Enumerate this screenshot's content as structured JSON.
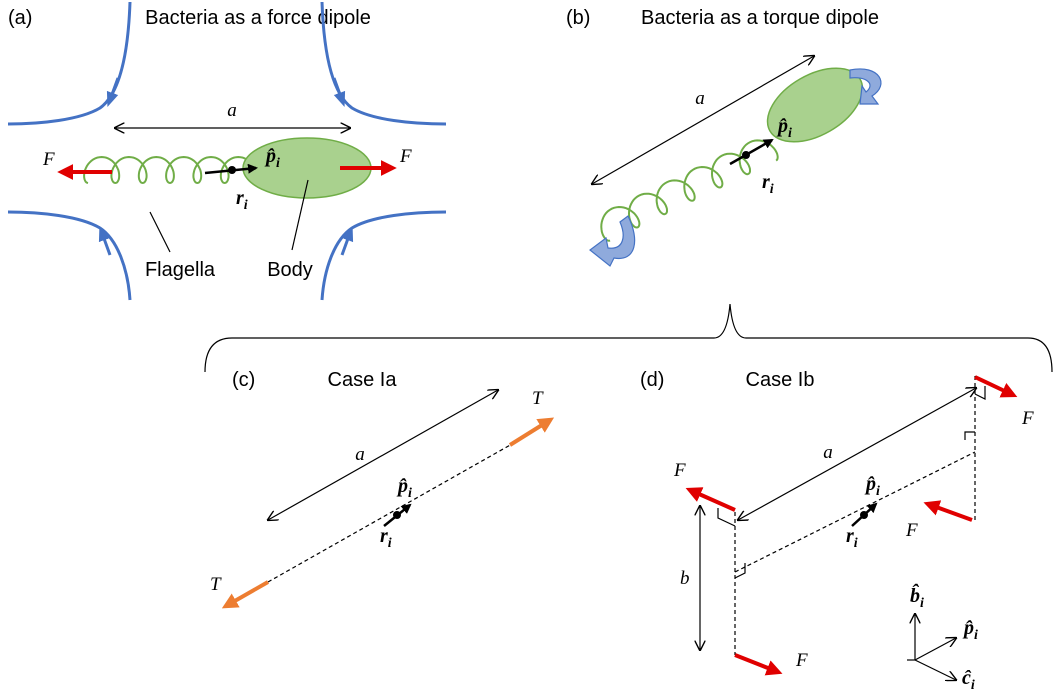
{
  "panels": [
    {
      "label": "(a)",
      "title": "Bacteria as a force dipole",
      "force_left": "F",
      "force_right": "F",
      "length": "a",
      "orientation": {
        "symbol": "p̂",
        "sub": "i"
      },
      "position": {
        "symbol": "r",
        "sub": "i"
      },
      "flagella": "Flagella",
      "body": "Body"
    },
    {
      "label": "(b)",
      "title": "Bacteria as a torque dipole",
      "length": "a",
      "orientation": {
        "symbol": "p̂",
        "sub": "i"
      },
      "position": {
        "symbol": "r",
        "sub": "i"
      }
    },
    {
      "label": "(c)",
      "title": "Case Ia",
      "torque_top": "T",
      "torque_bottom": "T",
      "length": "a",
      "orientation": {
        "symbol": "p̂",
        "sub": "i"
      },
      "position": {
        "symbol": "r",
        "sub": "i"
      }
    },
    {
      "label": "(d)",
      "title": "Case Ib",
      "forces": [
        "F",
        "F",
        "F",
        "F"
      ],
      "length": "a",
      "offset": "b",
      "orientation": {
        "symbol": "p̂",
        "sub": "i"
      },
      "position": {
        "symbol": "r",
        "sub": "i"
      },
      "axes": [
        {
          "symbol": "b̂",
          "sub": "i"
        },
        {
          "symbol": "p̂",
          "sub": "i"
        },
        {
          "symbol": "ĉ",
          "sub": "i"
        }
      ]
    }
  ]
}
